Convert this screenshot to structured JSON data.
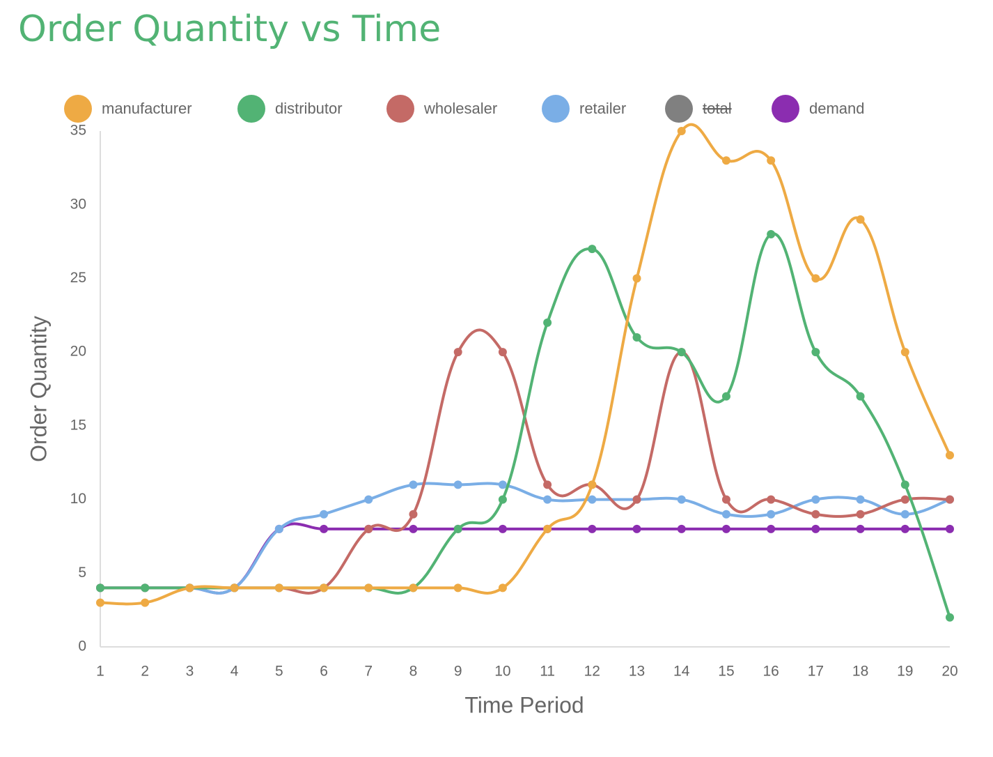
{
  "chart_data": {
    "type": "line",
    "title": "Order Quantity vs Time",
    "x_label": "Time Period",
    "y_label": "Order Quantity",
    "categories": [
      "1",
      "2",
      "3",
      "4",
      "5",
      "6",
      "7",
      "8",
      "9",
      "10",
      "11",
      "12",
      "13",
      "14",
      "15",
      "16",
      "17",
      "18",
      "19",
      "20"
    ],
    "series": [
      {
        "name": "manufacturer",
        "color": "#eeaa44",
        "values": [
          3,
          3,
          4,
          4,
          4,
          4,
          4,
          4,
          4,
          4,
          8,
          11,
          25,
          35,
          33,
          33,
          25,
          29,
          20,
          13
        ]
      },
      {
        "name": "distributor",
        "color": "#52b374",
        "values": [
          4,
          4,
          4,
          4,
          4,
          4,
          4,
          4,
          8,
          10,
          22,
          27,
          21,
          20,
          17,
          28,
          20,
          17,
          11,
          2
        ]
      },
      {
        "name": "wholesaler",
        "color": "#c46a66",
        "values": [
          4,
          4,
          4,
          4,
          4,
          4,
          8,
          9,
          20,
          20,
          11,
          11,
          10,
          20,
          10,
          10,
          9,
          9,
          10,
          10
        ]
      },
      {
        "name": "retailer",
        "color": "#7aaee6",
        "values": [
          4,
          4,
          4,
          4,
          8,
          9,
          10,
          11,
          11,
          11,
          10,
          10,
          10,
          10,
          9,
          9,
          10,
          10,
          9,
          10
        ]
      },
      {
        "name": "total",
        "color": "#808080",
        "hidden": true,
        "values": null
      },
      {
        "name": "demand",
        "color": "#8b2db0",
        "values": [
          4,
          4,
          4,
          4,
          8,
          8,
          8,
          8,
          8,
          8,
          8,
          8,
          8,
          8,
          8,
          8,
          8,
          8,
          8,
          8
        ]
      }
    ],
    "ylim": [
      0,
      35
    ],
    "yticks": [
      0,
      5,
      10,
      15,
      20,
      25,
      30,
      35
    ],
    "grid": false,
    "legend": "top"
  }
}
